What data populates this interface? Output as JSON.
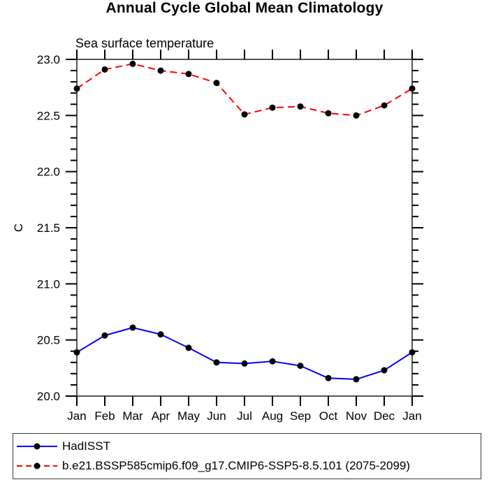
{
  "chart_data": {
    "type": "line",
    "title": "Annual Cycle Global Mean Climatology",
    "subtitle": "Sea surface temperature",
    "ylabel": "C",
    "xlabel": "",
    "categories": [
      "Jan",
      "Feb",
      "Mar",
      "Apr",
      "May",
      "Jun",
      "Jul",
      "Aug",
      "Sep",
      "Oct",
      "Nov",
      "Dec",
      "Jan"
    ],
    "ylim": [
      20.0,
      23.0
    ],
    "ytick_major_step": 0.5,
    "ytick_minor_step": 0.1,
    "ytick_labels": [
      "20.0",
      "20.5",
      "21.0",
      "21.5",
      "22.0",
      "22.5",
      "23.0"
    ],
    "grid": "off",
    "frame": "boxed-with-outward-ticks",
    "legend_position": "bottom-left-box",
    "axis_color": "#000000",
    "series": [
      {
        "name": "HadISST",
        "color": "#0000ff",
        "line_style": "solid",
        "marker": "filled-circle",
        "marker_color": "#000000",
        "values": [
          20.39,
          20.54,
          20.61,
          20.55,
          20.43,
          20.3,
          20.29,
          20.31,
          20.27,
          20.16,
          20.15,
          20.23,
          20.39
        ]
      },
      {
        "name": "b.e21.BSSP585cmip6.f09_g17.CMIP6-SSP5-8.5.101 (2075-2099)",
        "color": "#ff0000",
        "line_style": "dashed",
        "marker": "filled-circle",
        "marker_color": "#000000",
        "values": [
          22.74,
          22.91,
          22.96,
          22.9,
          22.87,
          22.79,
          22.51,
          22.57,
          22.58,
          22.52,
          22.5,
          22.59,
          22.74
        ]
      }
    ]
  }
}
